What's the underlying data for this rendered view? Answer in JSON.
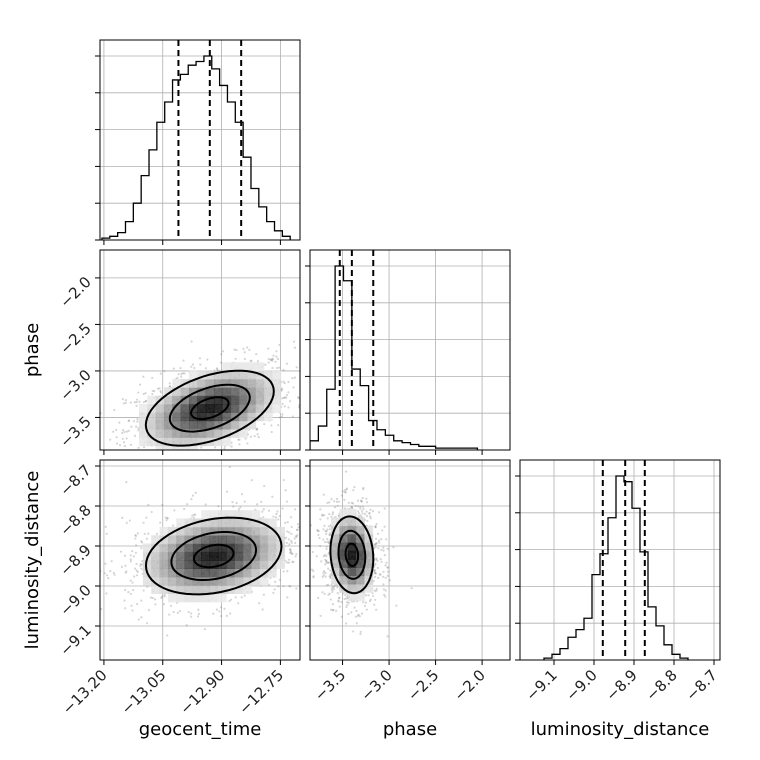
{
  "chart_data": {
    "type": "corner",
    "parameters": [
      "geocent_time",
      "phase",
      "luminosity_distance"
    ],
    "axis_labels": {
      "geocent_time": "geocent_time",
      "phase": "phase",
      "luminosity_distance": "luminosity_distance"
    },
    "ranges": {
      "geocent_time": [
        -13.21,
        -12.7
      ],
      "phase": [
        -3.85,
        -1.7
      ],
      "luminosity_distance": [
        -9.185,
        -8.685
      ]
    },
    "ticks": {
      "geocent_time": [
        {
          "v": -13.2,
          "t": "−13.20"
        },
        {
          "v": -13.05,
          "t": "−13.05"
        },
        {
          "v": -12.9,
          "t": "−12.90"
        },
        {
          "v": -12.75,
          "t": "−12.75"
        }
      ],
      "phase": [
        {
          "v": -3.5,
          "t": "−3.5"
        },
        {
          "v": -3.0,
          "t": "−3.0"
        },
        {
          "v": -2.5,
          "t": "−2.5"
        },
        {
          "v": -2.0,
          "t": "−2.0"
        }
      ],
      "luminosity_distance": [
        {
          "v": -9.1,
          "t": "−9.1"
        },
        {
          "v": -9.0,
          "t": "−9.0"
        },
        {
          "v": -8.9,
          "t": "−8.9"
        },
        {
          "v": -8.8,
          "t": "−8.8"
        },
        {
          "v": -8.7,
          "t": "−8.7"
        }
      ]
    },
    "histograms": {
      "geocent_time": {
        "quantiles": [
          -13.01,
          -12.93,
          -12.85
        ],
        "bins": [
          [
            -13.205,
            -13.185,
            1
          ],
          [
            -13.185,
            -13.165,
            2
          ],
          [
            -13.165,
            -13.145,
            4
          ],
          [
            -13.145,
            -13.125,
            10
          ],
          [
            -13.125,
            -13.105,
            20
          ],
          [
            -13.105,
            -13.085,
            35
          ],
          [
            -13.085,
            -13.065,
            49
          ],
          [
            -13.065,
            -13.045,
            64
          ],
          [
            -13.045,
            -13.025,
            75
          ],
          [
            -13.025,
            -13.005,
            87
          ],
          [
            -13.005,
            -12.985,
            90
          ],
          [
            -12.985,
            -12.965,
            95
          ],
          [
            -12.965,
            -12.945,
            97
          ],
          [
            -12.945,
            -12.925,
            100
          ],
          [
            -12.925,
            -12.905,
            93
          ],
          [
            -12.905,
            -12.885,
            84
          ],
          [
            -12.885,
            -12.865,
            75
          ],
          [
            -12.865,
            -12.845,
            64
          ],
          [
            -12.845,
            -12.825,
            45
          ],
          [
            -12.825,
            -12.805,
            28
          ],
          [
            -12.805,
            -12.785,
            18
          ],
          [
            -12.785,
            -12.765,
            10
          ],
          [
            -12.765,
            -12.745,
            5
          ],
          [
            -12.745,
            -12.725,
            2
          ]
        ]
      },
      "phase": {
        "quantiles": [
          -3.53,
          -3.4,
          -3.17
        ],
        "bins": [
          [
            -3.85,
            -3.76,
            5
          ],
          [
            -3.76,
            -3.67,
            13
          ],
          [
            -3.67,
            -3.58,
            33
          ],
          [
            -3.58,
            -3.49,
            100
          ],
          [
            -3.49,
            -3.4,
            92
          ],
          [
            -3.4,
            -3.31,
            44
          ],
          [
            -3.31,
            -3.22,
            35
          ],
          [
            -3.22,
            -3.13,
            16
          ],
          [
            -3.13,
            -3.04,
            11
          ],
          [
            -3.04,
            -2.95,
            8
          ],
          [
            -2.95,
            -2.86,
            5
          ],
          [
            -2.86,
            -2.77,
            4
          ],
          [
            -2.77,
            -2.68,
            3
          ],
          [
            -2.68,
            -2.59,
            2
          ],
          [
            -2.59,
            -2.5,
            2
          ],
          [
            -2.5,
            -2.41,
            1
          ],
          [
            -2.41,
            -2.32,
            1
          ],
          [
            -2.32,
            -2.23,
            1
          ],
          [
            -2.23,
            -2.14,
            1
          ],
          [
            -2.14,
            -2.05,
            1
          ]
        ]
      },
      "luminosity_distance": {
        "quantiles": [
          -8.978,
          -8.922,
          -8.873
        ],
        "bins": [
          [
            -9.125,
            -9.105,
            1
          ],
          [
            -9.105,
            -9.085,
            3
          ],
          [
            -9.085,
            -9.065,
            6
          ],
          [
            -9.065,
            -9.045,
            12
          ],
          [
            -9.045,
            -9.025,
            16
          ],
          [
            -9.025,
            -9.005,
            22
          ],
          [
            -9.005,
            -8.985,
            45
          ],
          [
            -8.985,
            -8.965,
            56
          ],
          [
            -8.965,
            -8.945,
            75
          ],
          [
            -8.945,
            -8.925,
            97
          ],
          [
            -8.925,
            -8.905,
            94
          ],
          [
            -8.905,
            -8.885,
            80
          ],
          [
            -8.885,
            -8.865,
            57
          ],
          [
            -8.865,
            -8.845,
            28
          ],
          [
            -8.845,
            -8.825,
            18
          ],
          [
            -8.825,
            -8.805,
            8
          ],
          [
            -8.805,
            -8.785,
            3
          ],
          [
            -8.785,
            -8.765,
            1
          ]
        ]
      }
    },
    "joint": [
      {
        "x": "geocent_time",
        "y": "phase",
        "mean": [
          -12.93,
          -3.4
        ],
        "sd": [
          0.085,
          0.21
        ],
        "rho": 0.45,
        "levels": [
          0.35,
          0.75,
          1.2
        ]
      },
      {
        "x": "geocent_time",
        "y": "luminosity_distance",
        "mean": [
          -12.92,
          -8.925
        ],
        "sd": [
          0.09,
          0.05
        ],
        "rho": 0.25,
        "levels": [
          0.35,
          0.75,
          1.2
        ]
      },
      {
        "x": "phase",
        "y": "luminosity_distance",
        "mean": [
          -3.4,
          -8.922
        ],
        "sd": [
          0.12,
          0.05
        ],
        "rho": -0.1,
        "levels": [
          0.35,
          0.75,
          1.2
        ]
      }
    ],
    "grid": true
  }
}
